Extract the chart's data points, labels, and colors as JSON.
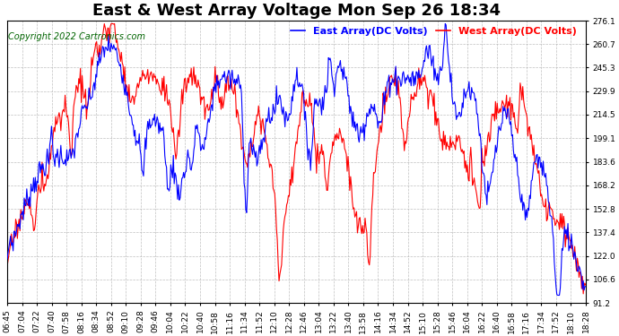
{
  "title": "East & West Array Voltage Mon Sep 26 18:34",
  "copyright": "Copyright 2022 Cartronics.com",
  "legend_east": "East Array(DC Volts)",
  "legend_west": "West Array(DC Volts)",
  "color_east": "blue",
  "color_west": "red",
  "ylim_min": 91.2,
  "ylim_max": 276.1,
  "yticks": [
    276.1,
    260.7,
    245.3,
    229.9,
    214.5,
    199.1,
    183.6,
    168.2,
    152.8,
    137.4,
    122.0,
    106.6,
    91.2
  ],
  "background_color": "#ffffff",
  "plot_bg_color": "#ffffff",
  "grid_color": "#b0b0b0",
  "title_fontsize": 13,
  "tick_fontsize": 6.5,
  "legend_fontsize": 8,
  "copyright_fontsize": 7,
  "line_width": 0.8,
  "xtick_labels": [
    "06:45",
    "07:04",
    "07:22",
    "07:40",
    "07:58",
    "08:16",
    "08:34",
    "08:52",
    "09:10",
    "09:28",
    "09:46",
    "10:04",
    "10:22",
    "10:40",
    "10:58",
    "11:16",
    "11:34",
    "11:52",
    "12:10",
    "12:28",
    "12:46",
    "13:04",
    "13:22",
    "13:40",
    "13:58",
    "14:16",
    "14:34",
    "14:52",
    "15:10",
    "15:28",
    "15:46",
    "16:04",
    "16:22",
    "16:40",
    "16:58",
    "17:16",
    "17:34",
    "17:52",
    "18:10",
    "18:28"
  ]
}
